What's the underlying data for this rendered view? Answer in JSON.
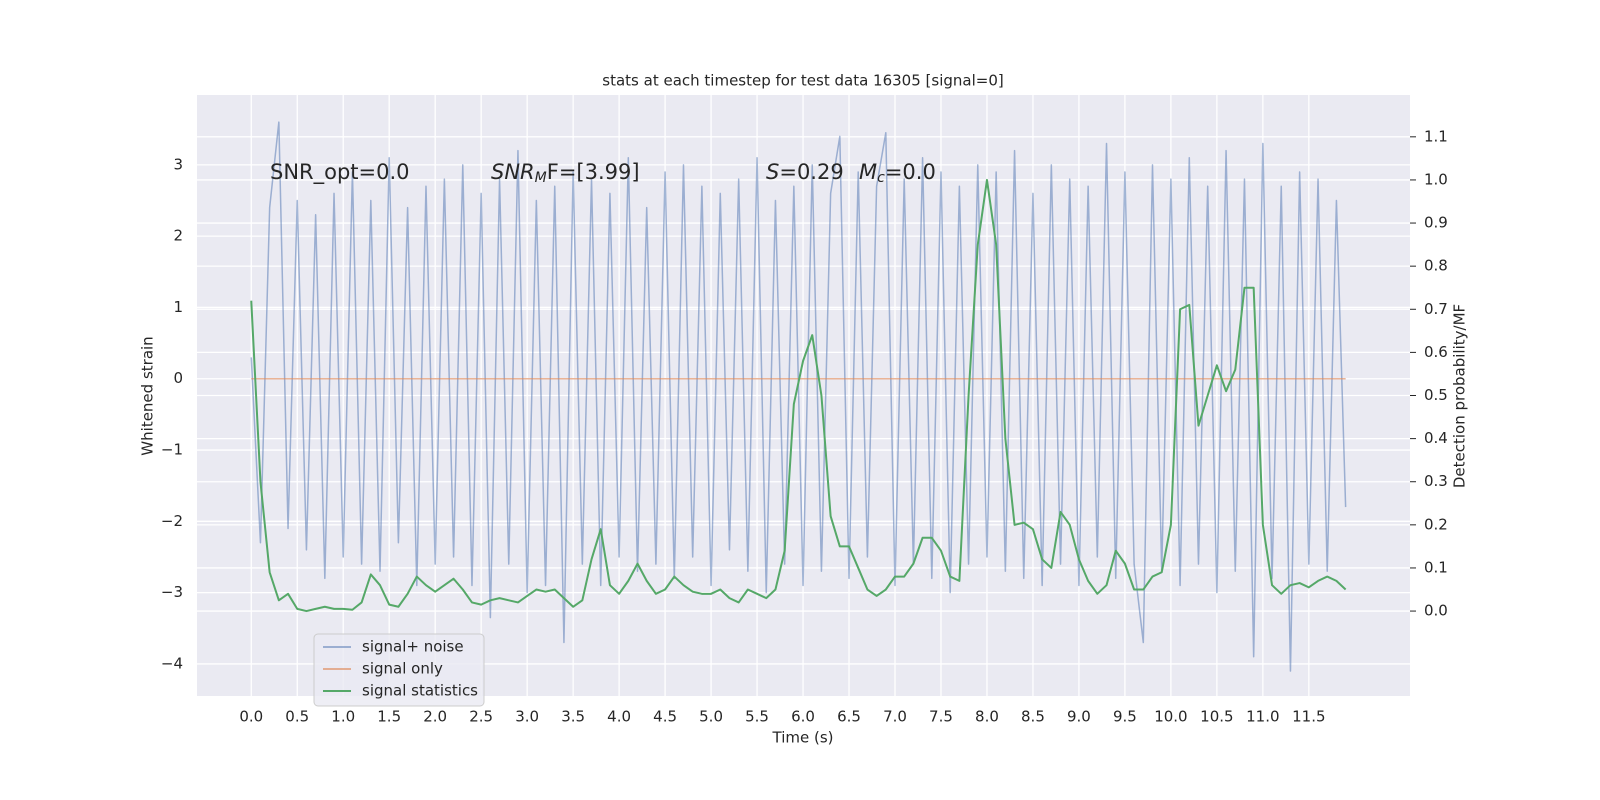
{
  "chart_data": {
    "type": "line",
    "title": "stats at each timestep for test data 16305 [signal=0]",
    "xlabel": "Time (s)",
    "ylabel": "Whitened strain",
    "y2label": "Detection probability/MF",
    "annotations": [
      [
        {
          "text": "SNR_opt=0.0"
        }
      ],
      [
        {
          "text": "SNR",
          "italic": true
        },
        {
          "text": "M",
          "italic": true,
          "sub": true
        },
        {
          "text": "F=[3.99]"
        }
      ],
      [
        {
          "text": "S",
          "italic": true
        },
        {
          "text": "=0.29"
        }
      ],
      [
        {
          "text": "M",
          "italic": true
        },
        {
          "text": "c",
          "italic": true,
          "sub": true
        },
        {
          "text": "=0.0"
        }
      ]
    ],
    "grid": true,
    "legend": "lower left",
    "xlim": [
      -0.59,
      12.6
    ],
    "ylim": [
      -4.45,
      3.98
    ],
    "y2lim": [
      -0.197,
      1.197
    ],
    "xticks": [
      {
        "value": 0,
        "label": "0.0"
      },
      0.5,
      {
        "value": 1,
        "label": "1.0"
      },
      1.5,
      {
        "value": 2,
        "label": "2.0"
      },
      2.5,
      {
        "value": 3,
        "label": "3.0"
      },
      3.5,
      {
        "value": 4,
        "label": "4.0"
      },
      4.5,
      {
        "value": 5,
        "label": "5.0"
      },
      5.5,
      {
        "value": 6,
        "label": "6.0"
      },
      6.5,
      {
        "value": 7,
        "label": "7.0"
      },
      7.5,
      {
        "value": 8,
        "label": "8.0"
      },
      8.5,
      {
        "value": 9,
        "label": "9.0"
      },
      9.5,
      {
        "value": 10,
        "label": "10.0"
      },
      10.5,
      {
        "value": 11,
        "label": "11.0"
      },
      11.5
    ],
    "yticks": [
      {
        "value": -4,
        "label": "−4"
      },
      {
        "value": -3,
        "label": "−3"
      },
      {
        "value": -2,
        "label": "−2"
      },
      {
        "value": -1,
        "label": "−1"
      },
      0,
      1,
      2,
      3
    ],
    "y2ticks": [
      {
        "value": 0,
        "label": "0.0"
      },
      0.1,
      0.2,
      0.3,
      0.4,
      0.5,
      0.6,
      0.7,
      0.8,
      0.9,
      {
        "value": 1,
        "label": "1.0"
      },
      1.1
    ],
    "x": [
      0,
      0.1,
      0.2,
      0.3,
      0.4,
      0.5,
      0.6,
      0.7,
      0.8,
      0.9,
      1,
      1.1,
      1.2,
      1.3,
      1.4,
      1.5,
      1.6,
      1.7,
      1.8,
      1.9,
      2,
      2.1,
      2.2,
      2.3,
      2.4,
      2.5,
      2.6,
      2.7,
      2.8,
      2.9,
      3,
      3.1,
      3.2,
      3.3,
      3.4,
      3.5,
      3.6,
      3.7,
      3.8,
      3.9,
      4,
      4.1,
      4.2,
      4.3,
      4.4,
      4.5,
      4.6,
      4.7,
      4.8,
      4.9,
      5,
      5.1,
      5.2,
      5.3,
      5.4,
      5.5,
      5.6,
      5.7,
      5.8,
      5.9,
      6,
      6.1,
      6.2,
      6.3,
      6.4,
      6.5,
      6.6,
      6.7,
      6.8,
      6.9,
      7,
      7.1,
      7.2,
      7.3,
      7.4,
      7.5,
      7.6,
      7.7,
      7.8,
      7.9,
      8,
      8.1,
      8.2,
      8.3,
      8.4,
      8.5,
      8.6,
      8.7,
      8.8,
      8.9,
      9,
      9.1,
      9.2,
      9.3,
      9.4,
      9.5,
      9.6,
      9.7,
      9.8,
      9.9,
      10,
      10.1,
      10.2,
      10.3,
      10.4,
      10.5,
      10.6,
      10.7,
      10.8,
      10.9,
      11,
      11.1,
      11.2,
      11.3,
      11.4,
      11.5,
      11.6,
      11.7,
      11.8,
      11.9
    ],
    "series": [
      {
        "name": "signal+ noise",
        "color": "#4c72b0",
        "opacity": 0.5,
        "values": [
          0.3,
          -2.3,
          2.4,
          3.6,
          -2.1,
          2.5,
          -2.4,
          2.3,
          -2.8,
          2.6,
          -2.5,
          2.9,
          -2.6,
          2.5,
          -2.7,
          3.1,
          -2.3,
          2.4,
          -2.9,
          2.7,
          -2.6,
          2.8,
          -2.5,
          3.0,
          -2.9,
          2.6,
          -3.35,
          2.8,
          -2.6,
          3.2,
          -3.0,
          2.5,
          -2.9,
          2.7,
          -3.7,
          2.9,
          -2.6,
          2.8,
          -2.9,
          2.6,
          -2.5,
          3.1,
          -2.7,
          2.4,
          -2.6,
          2.9,
          -2.8,
          3.0,
          -2.5,
          2.7,
          -2.9,
          2.6,
          -2.4,
          2.8,
          -2.7,
          3.1,
          -3.0,
          2.5,
          -2.6,
          2.7,
          -2.9,
          3.0,
          -2.7,
          2.6,
          3.4,
          -2.8,
          2.9,
          -2.5,
          2.7,
          3.45,
          -2.9,
          2.8,
          -2.6,
          3.1,
          -2.8,
          2.9,
          -3.0,
          2.7,
          -2.6,
          3.0,
          -2.5,
          2.9,
          -2.7,
          3.2,
          -2.8,
          2.6,
          -2.9,
          3.0,
          -2.6,
          2.8,
          -2.9,
          2.7,
          -2.5,
          3.3,
          -2.8,
          2.9,
          -2.6,
          -3.7,
          3.0,
          -2.7,
          2.8,
          -2.9,
          3.1,
          -2.6,
          2.7,
          -3.0,
          3.2,
          -2.7,
          2.8,
          -3.9,
          3.3,
          -2.8,
          2.7,
          -4.1,
          2.9,
          -2.6,
          2.8,
          -2.7,
          2.5,
          -1.8
        ]
      },
      {
        "name": "signal only",
        "color": "#dd8452",
        "opacity": 0.6,
        "values": [
          0,
          0,
          0,
          0,
          0,
          0,
          0,
          0,
          0,
          0,
          0,
          0,
          0,
          0,
          0,
          0,
          0,
          0,
          0,
          0,
          0,
          0,
          0,
          0,
          0,
          0,
          0,
          0,
          0,
          0,
          0,
          0,
          0,
          0,
          0,
          0,
          0,
          0,
          0,
          0,
          0,
          0,
          0,
          0,
          0,
          0,
          0,
          0,
          0,
          0,
          0,
          0,
          0,
          0,
          0,
          0,
          0,
          0,
          0,
          0,
          0,
          0,
          0,
          0,
          0,
          0,
          0,
          0,
          0,
          0,
          0,
          0,
          0,
          0,
          0,
          0,
          0,
          0,
          0,
          0,
          0,
          0,
          0,
          0,
          0,
          0,
          0,
          0,
          0,
          0,
          0,
          0,
          0,
          0,
          0,
          0,
          0,
          0,
          0,
          0,
          0,
          0,
          0,
          0,
          0,
          0,
          0,
          0,
          0,
          0,
          0,
          0,
          0,
          0,
          0,
          0,
          0,
          0,
          0,
          0
        ]
      },
      {
        "name": "signal statistics",
        "color": "#55a868",
        "opacity": 1,
        "axis": "y2",
        "values": [
          0.72,
          0.3,
          0.09,
          0.025,
          0.04,
          0.005,
          0,
          0.005,
          0.01,
          0.005,
          0.005,
          0.003,
          0.02,
          0.085,
          0.06,
          0.015,
          0.01,
          0.04,
          0.08,
          0.06,
          0.045,
          0.06,
          0.075,
          0.05,
          0.02,
          0.015,
          0.025,
          0.03,
          0.025,
          0.02,
          0.035,
          0.05,
          0.045,
          0.05,
          0.03,
          0.01,
          0.025,
          0.12,
          0.19,
          0.06,
          0.04,
          0.07,
          0.11,
          0.07,
          0.04,
          0.05,
          0.08,
          0.06,
          0.045,
          0.04,
          0.04,
          0.05,
          0.03,
          0.02,
          0.05,
          0.04,
          0.03,
          0.05,
          0.14,
          0.48,
          0.58,
          0.64,
          0.5,
          0.22,
          0.15,
          0.15,
          0.1,
          0.05,
          0.035,
          0.05,
          0.08,
          0.08,
          0.11,
          0.17,
          0.17,
          0.14,
          0.08,
          0.07,
          0.5,
          0.85,
          1.0,
          0.85,
          0.4,
          0.2,
          0.205,
          0.19,
          0.12,
          0.1,
          0.23,
          0.2,
          0.12,
          0.07,
          0.04,
          0.06,
          0.14,
          0.11,
          0.05,
          0.05,
          0.08,
          0.09,
          0.2,
          0.7,
          0.71,
          0.43,
          0.5,
          0.57,
          0.51,
          0.56,
          0.75,
          0.75,
          0.2,
          0.06,
          0.04,
          0.06,
          0.065,
          0.055,
          0.07,
          0.08,
          0.07,
          0.05
        ]
      }
    ]
  }
}
